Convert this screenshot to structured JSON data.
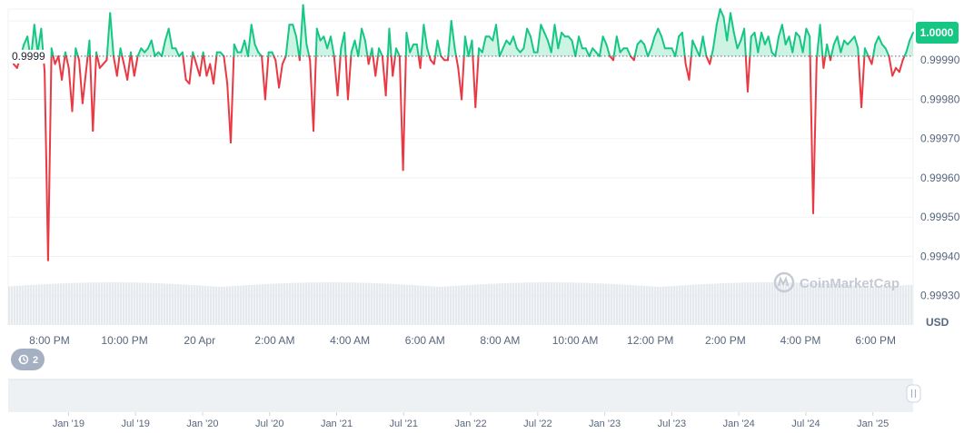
{
  "chart_data": {
    "type": "line",
    "currency": "USD",
    "reference_value_label": "0.9999",
    "reference_value": 0.99991,
    "current_price_label": "1.0000",
    "current_price": 0.99997,
    "ylim": [
      0.99926,
      1.00003
    ],
    "y_ticks": [
      "0.99990",
      "0.99980",
      "0.99970",
      "0.99960",
      "0.99950",
      "0.99940",
      "0.99930"
    ],
    "y_tick_values": [
      0.9999,
      0.9998,
      0.9997,
      0.9996,
      0.9995,
      0.9994,
      0.9993
    ],
    "x_tick_labels": [
      "8:00 PM",
      "10:00 PM",
      "20 Apr",
      "2:00 AM",
      "4:00 AM",
      "6:00 AM",
      "8:00 AM",
      "10:00 AM",
      "12:00 PM",
      "2:00 PM",
      "4:00 PM",
      "6:00 PM"
    ],
    "x_tick_positions": [
      0.5,
      2.5,
      4.5,
      6.5,
      8.5,
      10.5,
      12.5,
      14.5,
      16.5,
      18.5,
      20.5,
      22.5
    ],
    "x_range_hours": [
      -0.6,
      23.5
    ],
    "series": [
      {
        "values": [
          0.99989,
          0.99988,
          0.99991,
          0.99994,
          0.99996,
          0.9999,
          0.99999,
          0.99992,
          0.99998,
          0.99987,
          0.99939,
          0.99993,
          0.99989,
          0.99991,
          0.99985,
          0.99992,
          0.99988,
          0.99977,
          0.99993,
          0.9999,
          0.99979,
          0.99987,
          0.99995,
          0.99972,
          0.99992,
          0.99988,
          0.99989,
          0.9999,
          1.00002,
          0.99991,
          0.99986,
          0.99993,
          0.99989,
          0.99985,
          0.99992,
          0.99986,
          0.99991,
          0.99993,
          0.99992,
          0.99993,
          0.99995,
          0.99991,
          0.99992,
          0.99991,
          0.99995,
          0.99998,
          0.99993,
          0.99993,
          0.99991,
          0.99992,
          0.99985,
          0.99984,
          0.99992,
          0.99989,
          0.99986,
          0.99992,
          0.99986,
          0.99989,
          0.99984,
          0.99992,
          0.99992,
          0.99991,
          0.99984,
          0.99969,
          0.99994,
          0.99992,
          0.99992,
          0.99995,
          0.99991,
          0.99999,
          0.99994,
          0.99992,
          0.99991,
          0.9998,
          0.99992,
          0.99992,
          0.9999,
          0.99983,
          0.99989,
          0.99991,
          0.99999,
          0.99999,
          0.99996,
          0.9999,
          1.00004,
          0.99994,
          0.9999,
          0.99972,
          0.99998,
          0.99995,
          0.99996,
          0.99993,
          0.99996,
          0.99991,
          0.99981,
          0.99993,
          0.99997,
          0.9998,
          0.99992,
          0.99995,
          0.99991,
          0.99998,
          0.99995,
          0.99989,
          0.99993,
          0.99986,
          0.99993,
          0.99991,
          0.99981,
          0.99998,
          0.99986,
          0.99993,
          0.99991,
          0.99962,
          0.99997,
          0.99992,
          0.99994,
          0.99994,
          0.99988,
          0.99999,
          0.99993,
          0.9999,
          0.99989,
          0.99995,
          0.99991,
          0.9999,
          0.9999,
          1.0,
          0.99993,
          0.99988,
          0.9998,
          0.99996,
          0.99991,
          0.99995,
          0.99978,
          0.99993,
          0.99992,
          0.99996,
          0.99996,
          0.99995,
          0.99999,
          0.99991,
          0.99993,
          0.99995,
          0.99994,
          0.99996,
          0.99993,
          0.99992,
          0.99993,
          0.99998,
          0.99996,
          0.99992,
          0.99992,
          0.99999,
          0.99997,
          0.99995,
          0.99992,
          0.99999,
          0.99993,
          0.99997,
          0.99996,
          0.99996,
          0.99995,
          0.99991,
          0.99996,
          0.99993,
          0.99993,
          0.99991,
          0.99993,
          0.99992,
          0.99991,
          0.99996,
          0.99994,
          0.99991,
          0.9999,
          0.99996,
          0.99992,
          0.99993,
          0.99993,
          0.99991,
          0.9999,
          0.99994,
          0.99995,
          0.99994,
          0.99991,
          0.99993,
          0.99996,
          0.99998,
          0.99996,
          0.99993,
          0.99993,
          0.99993,
          0.99991,
          0.99996,
          0.99997,
          0.99989,
          0.99985,
          0.99995,
          0.99993,
          0.99991,
          0.99996,
          0.99991,
          0.99989,
          0.99993,
          0.99999,
          1.00003,
          1.00001,
          0.99995,
          1.00002,
          0.99997,
          0.99993,
          0.99995,
          0.99998,
          0.99982,
          0.99996,
          0.99997,
          0.99992,
          0.99997,
          0.99994,
          0.99996,
          0.99992,
          0.99991,
          0.99996,
          0.99999,
          0.99994,
          0.99996,
          0.99992,
          0.99997,
          0.99996,
          0.99992,
          0.99998,
          0.99996,
          0.99951,
          0.9999,
          0.99999,
          0.99988,
          0.99994,
          0.9999,
          0.99994,
          0.99996,
          0.99992,
          0.99995,
          0.99994,
          0.99995,
          0.99996,
          0.99993,
          0.99978,
          0.99993,
          0.99991,
          0.99989,
          0.99994,
          0.99996,
          0.99994,
          0.99993,
          0.99991,
          0.99986,
          0.99988,
          0.99987,
          0.9999,
          0.99992,
          0.99995,
          0.99997
        ]
      }
    ]
  },
  "navigator": {
    "labels": [
      "Jan '19",
      "Jul '19",
      "Jan '20",
      "Jul '20",
      "Jan '21",
      "Jul '21",
      "Jan '22",
      "Jul '22",
      "Jan '23",
      "Jul '23",
      "Jan '24",
      "Jul '24",
      "Jan '25"
    ],
    "label_positions": [
      0,
      0.5,
      1,
      1.5,
      2,
      2.5,
      3,
      3.5,
      4,
      4.5,
      5,
      5.5,
      6
    ],
    "range_years": [
      -0.45,
      6.3
    ]
  },
  "history_badge": {
    "count": "2"
  },
  "watermark": {
    "text": "CoinMarketCap"
  },
  "colors": {
    "up": "#16c784",
    "down": "#ea3943",
    "up_fill": "rgba(22,199,132,0.22)",
    "grid": "#eff2f5",
    "volume": "#e6e9ee",
    "navigator_bg": "#eef1f4"
  },
  "icons": {
    "history": "history-icon",
    "handle": "pause-handle-icon",
    "logo": "coinmarketcap-logo-icon"
  }
}
